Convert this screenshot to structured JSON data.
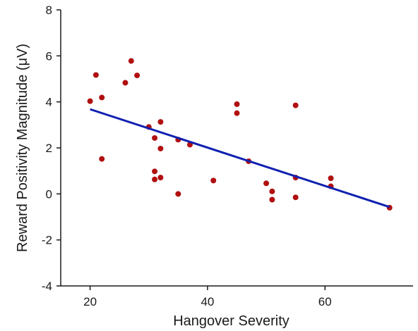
{
  "chart_data": {
    "type": "scatter",
    "title": "",
    "xlabel": "Hangover Severity",
    "ylabel": "Reward Positivity Magnitude (μV)",
    "xlim": [
      15,
      75
    ],
    "ylim": [
      -4,
      8
    ],
    "x_ticks": [
      20,
      40,
      60
    ],
    "y_ticks": [
      -4,
      -2,
      0,
      2,
      4,
      6,
      8
    ],
    "grid": false,
    "legend": "none",
    "point_color": "#b01010",
    "line_color": "#1020b0",
    "points": [
      {
        "x": 20,
        "y": 4.03
      },
      {
        "x": 21,
        "y": 5.17
      },
      {
        "x": 22,
        "y": 4.19
      },
      {
        "x": 22,
        "y": 1.52
      },
      {
        "x": 26,
        "y": 4.83
      },
      {
        "x": 27,
        "y": 5.78
      },
      {
        "x": 28,
        "y": 5.15
      },
      {
        "x": 30,
        "y": 2.91
      },
      {
        "x": 31,
        "y": 2.43
      },
      {
        "x": 31,
        "y": 0.98
      },
      {
        "x": 31,
        "y": 0.63
      },
      {
        "x": 32,
        "y": 3.13
      },
      {
        "x": 32,
        "y": 1.97
      },
      {
        "x": 32,
        "y": 0.71
      },
      {
        "x": 35,
        "y": 2.36
      },
      {
        "x": 35,
        "y": 0.0
      },
      {
        "x": 37,
        "y": 2.14
      },
      {
        "x": 41,
        "y": 0.58
      },
      {
        "x": 45,
        "y": 3.9
      },
      {
        "x": 45,
        "y": 3.51
      },
      {
        "x": 47,
        "y": 1.42
      },
      {
        "x": 50,
        "y": 0.46
      },
      {
        "x": 51,
        "y": 0.11
      },
      {
        "x": 51,
        "y": -0.25
      },
      {
        "x": 55,
        "y": 3.85
      },
      {
        "x": 55,
        "y": 0.71
      },
      {
        "x": 55,
        "y": -0.15
      },
      {
        "x": 61,
        "y": 0.68
      },
      {
        "x": 61,
        "y": 0.33
      },
      {
        "x": 71,
        "y": -0.6
      }
    ],
    "fit_line": {
      "x": [
        20,
        71
      ],
      "y": [
        3.68,
        -0.57
      ]
    }
  }
}
